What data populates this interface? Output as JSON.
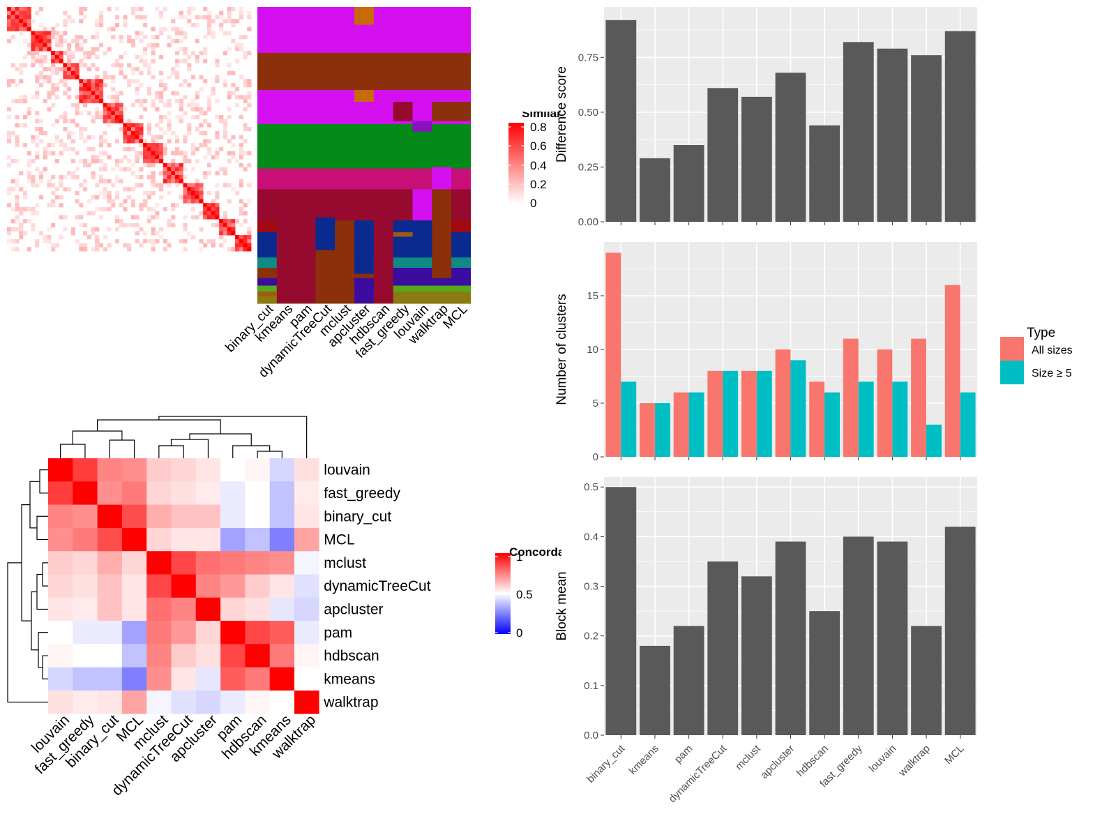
{
  "methods": [
    "binary_cut",
    "kmeans",
    "pam",
    "dynamicTreeCut",
    "mclust",
    "apcluster",
    "hdbscan",
    "fast_greedy",
    "louvain",
    "walktrap",
    "MCL"
  ],
  "colors": {
    "panel_bg": "#ebebeb",
    "grid": "#ffffff",
    "bar": "#595959",
    "all_sizes": "#f8766d",
    "size_ge5": "#00bfc4",
    "heat_high": "#ff0000",
    "heat_mid": "#ffffff",
    "heat_low": "#0000ff"
  },
  "chart_data": [
    {
      "type": "heatmap",
      "id": "similarity_matrix",
      "legend_title": "Similarity",
      "legend_ticks": [
        "0.8",
        "0.6",
        "0.4",
        "0.2",
        "0"
      ],
      "n": 61,
      "blocks": [
        [
          0,
          6
        ],
        [
          6,
          11
        ],
        [
          11,
          14
        ],
        [
          14,
          18
        ],
        [
          18,
          24
        ],
        [
          24,
          29
        ],
        [
          29,
          34
        ],
        [
          34,
          39
        ],
        [
          39,
          44
        ],
        [
          44,
          49
        ],
        [
          49,
          53
        ],
        [
          53,
          57
        ],
        [
          57,
          61
        ]
      ]
    },
    {
      "type": "heatmap",
      "id": "cluster_assignments",
      "columns": [
        "binary_cut",
        "kmeans",
        "pam",
        "dynamicTreeCut",
        "mclust",
        "apcluster",
        "hdbscan",
        "fast_greedy",
        "louvain",
        "walktrap",
        "MCL"
      ]
    },
    {
      "type": "bar",
      "id": "difference_score",
      "categories": [
        "binary_cut",
        "kmeans",
        "pam",
        "dynamicTreeCut",
        "mclust",
        "apcluster",
        "hdbscan",
        "fast_greedy",
        "louvain",
        "walktrap",
        "MCL"
      ],
      "values": [
        0.92,
        0.29,
        0.35,
        0.61,
        0.57,
        0.68,
        0.44,
        0.82,
        0.79,
        0.76,
        0.87
      ],
      "ylabel": "Difference score",
      "ylim": [
        0,
        0.98
      ],
      "yticks": [
        "0.00",
        "0.25",
        "0.50",
        "0.75"
      ],
      "yticks_num": [
        0,
        0.25,
        0.5,
        0.75
      ],
      "grid": true
    },
    {
      "type": "bar",
      "id": "number_of_clusters",
      "categories": [
        "binary_cut",
        "kmeans",
        "pam",
        "dynamicTreeCut",
        "mclust",
        "apcluster",
        "hdbscan",
        "fast_greedy",
        "louvain",
        "walktrap",
        "MCL"
      ],
      "series": [
        {
          "name": "All sizes",
          "values": [
            19,
            5,
            6,
            8,
            8,
            10,
            7,
            11,
            10,
            11,
            16
          ]
        },
        {
          "name": "Size ≥ 5",
          "values": [
            7,
            5,
            6,
            8,
            8,
            9,
            6,
            7,
            7,
            3,
            6
          ]
        }
      ],
      "ylabel": "Number of clusters",
      "ylim": [
        0,
        20
      ],
      "yticks": [
        "0",
        "5",
        "10",
        "15"
      ],
      "yticks_num": [
        0,
        5,
        10,
        15
      ],
      "legend_title": "Type",
      "legend_position": "right",
      "grid": true
    },
    {
      "type": "bar",
      "id": "block_mean",
      "categories": [
        "binary_cut",
        "kmeans",
        "pam",
        "dynamicTreeCut",
        "mclust",
        "apcluster",
        "hdbscan",
        "fast_greedy",
        "louvain",
        "walktrap",
        "MCL"
      ],
      "values": [
        0.5,
        0.18,
        0.22,
        0.35,
        0.32,
        0.39,
        0.25,
        0.4,
        0.39,
        0.22,
        0.42
      ],
      "ylabel": "Block mean",
      "ylim": [
        0,
        0.52
      ],
      "yticks": [
        "0.0",
        "0.1",
        "0.2",
        "0.3",
        "0.4",
        "0.5"
      ],
      "yticks_num": [
        0,
        0.1,
        0.2,
        0.3,
        0.4,
        0.5
      ],
      "grid": true
    },
    {
      "type": "heatmap",
      "id": "concordance",
      "legend_title": "Concordance",
      "legend_ticks": [
        "1",
        "0.5",
        "0"
      ],
      "rows": [
        "louvain",
        "fast_greedy",
        "binary_cut",
        "MCL",
        "mclust",
        "dynamicTreeCut",
        "apcluster",
        "pam",
        "hdbscan",
        "kmeans",
        "walktrap"
      ],
      "cols": [
        "louvain",
        "fast_greedy",
        "binary_cut",
        "MCL",
        "mclust",
        "dynamicTreeCut",
        "apcluster",
        "pam",
        "hdbscan",
        "kmeans",
        "walktrap"
      ],
      "matrix": [
        [
          1.0,
          0.88,
          0.74,
          0.72,
          0.6,
          0.58,
          0.55,
          0.5,
          0.52,
          0.42,
          0.56
        ],
        [
          0.88,
          1.0,
          0.72,
          0.76,
          0.58,
          0.56,
          0.54,
          0.46,
          0.5,
          0.38,
          0.54
        ],
        [
          0.74,
          0.72,
          1.0,
          0.85,
          0.66,
          0.62,
          0.62,
          0.46,
          0.5,
          0.38,
          0.55
        ],
        [
          0.72,
          0.76,
          0.85,
          1.0,
          0.58,
          0.55,
          0.55,
          0.32,
          0.38,
          0.25,
          0.68
        ],
        [
          0.6,
          0.58,
          0.66,
          0.58,
          1.0,
          0.86,
          0.78,
          0.76,
          0.74,
          0.72,
          0.48
        ],
        [
          0.58,
          0.56,
          0.62,
          0.55,
          0.86,
          1.0,
          0.74,
          0.7,
          0.6,
          0.55,
          0.44
        ],
        [
          0.55,
          0.54,
          0.62,
          0.55,
          0.78,
          0.74,
          1.0,
          0.58,
          0.56,
          0.45,
          0.42
        ],
        [
          0.5,
          0.46,
          0.46,
          0.32,
          0.76,
          0.7,
          0.58,
          1.0,
          0.86,
          0.82,
          0.46
        ],
        [
          0.52,
          0.5,
          0.5,
          0.38,
          0.74,
          0.6,
          0.56,
          0.86,
          1.0,
          0.76,
          0.52
        ],
        [
          0.42,
          0.38,
          0.38,
          0.25,
          0.72,
          0.55,
          0.45,
          0.82,
          0.76,
          1.0,
          0.5
        ],
        [
          0.56,
          0.54,
          0.55,
          0.68,
          0.48,
          0.44,
          0.42,
          0.46,
          0.52,
          0.5,
          1.0
        ]
      ]
    }
  ]
}
